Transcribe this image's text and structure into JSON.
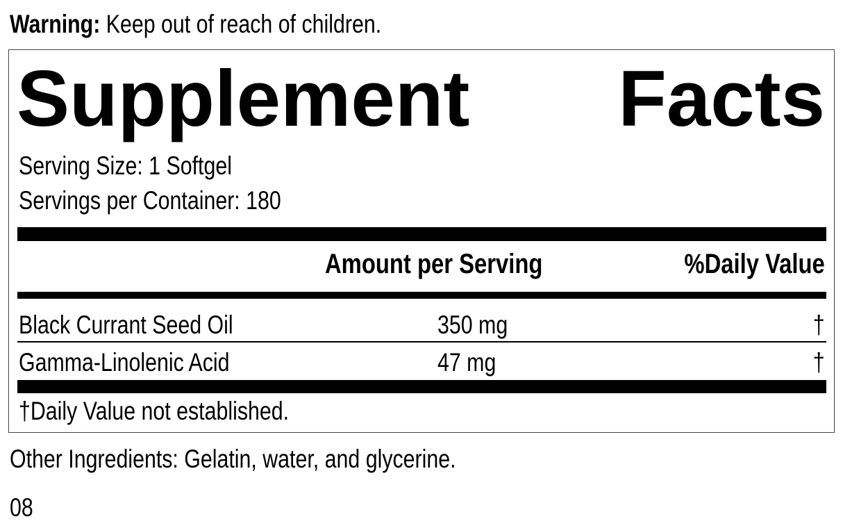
{
  "warning": {
    "label": "Warning:",
    "text": " Keep out of reach of children."
  },
  "title": {
    "word1": "Supplement",
    "word2": "Facts"
  },
  "serving_size": "Serving Size: 1 Softgel",
  "servings_per_container": "Servings per Container: 180",
  "headers": {
    "amount": "Amount per Serving",
    "daily_value": "%Daily Value"
  },
  "rows": [
    {
      "name": "Black Currant Seed Oil",
      "amount": "350 mg",
      "dv": "†"
    },
    {
      "name": "Gamma-Linolenic Acid",
      "amount": "47 mg",
      "dv": "†"
    }
  ],
  "footnote": "†Daily Value not established.",
  "other_ingredients": "Other Ingredients: Gelatin, water, and glycerine.",
  "code": "08"
}
